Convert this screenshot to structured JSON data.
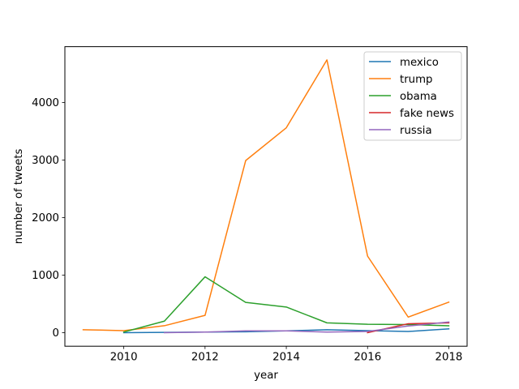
{
  "chart_data": {
    "type": "line",
    "title": "",
    "xlabel": "year",
    "ylabel": "number of tweets",
    "xlim": [
      2008.55,
      2018.45
    ],
    "ylim": [
      -236,
      4969
    ],
    "xticks": [
      2010,
      2012,
      2014,
      2016,
      2018
    ],
    "yticks": [
      0,
      1000,
      2000,
      3000,
      4000
    ],
    "legend_position": "upper-right",
    "series": [
      {
        "name": "mexico",
        "color": "#1f77b4",
        "x": [
          2010,
          2011,
          2012,
          2013,
          2014,
          2015,
          2016,
          2017,
          2018
        ],
        "y": [
          0,
          5,
          10,
          15,
          30,
          50,
          35,
          20,
          65
        ]
      },
      {
        "name": "trump",
        "color": "#ff7f0e",
        "x": [
          2009,
          2010,
          2011,
          2012,
          2013,
          2014,
          2015,
          2016,
          2017,
          2018
        ],
        "y": [
          50,
          35,
          120,
          300,
          2990,
          3560,
          4740,
          1330,
          270,
          530
        ]
      },
      {
        "name": "obama",
        "color": "#2ca02c",
        "x": [
          2010,
          2011,
          2012,
          2013,
          2014,
          2015,
          2016,
          2017,
          2018
        ],
        "y": [
          10,
          200,
          970,
          525,
          445,
          170,
          145,
          140,
          120
        ]
      },
      {
        "name": "fake news",
        "color": "#d62728",
        "x": [
          2016,
          2017,
          2018
        ],
        "y": [
          0,
          155,
          170
        ]
      },
      {
        "name": "russia",
        "color": "#9467bd",
        "x": [
          2011,
          2012,
          2013,
          2014,
          2015,
          2016,
          2017,
          2018
        ],
        "y": [
          0,
          10,
          30,
          30,
          10,
          20,
          115,
          185
        ]
      }
    ]
  }
}
